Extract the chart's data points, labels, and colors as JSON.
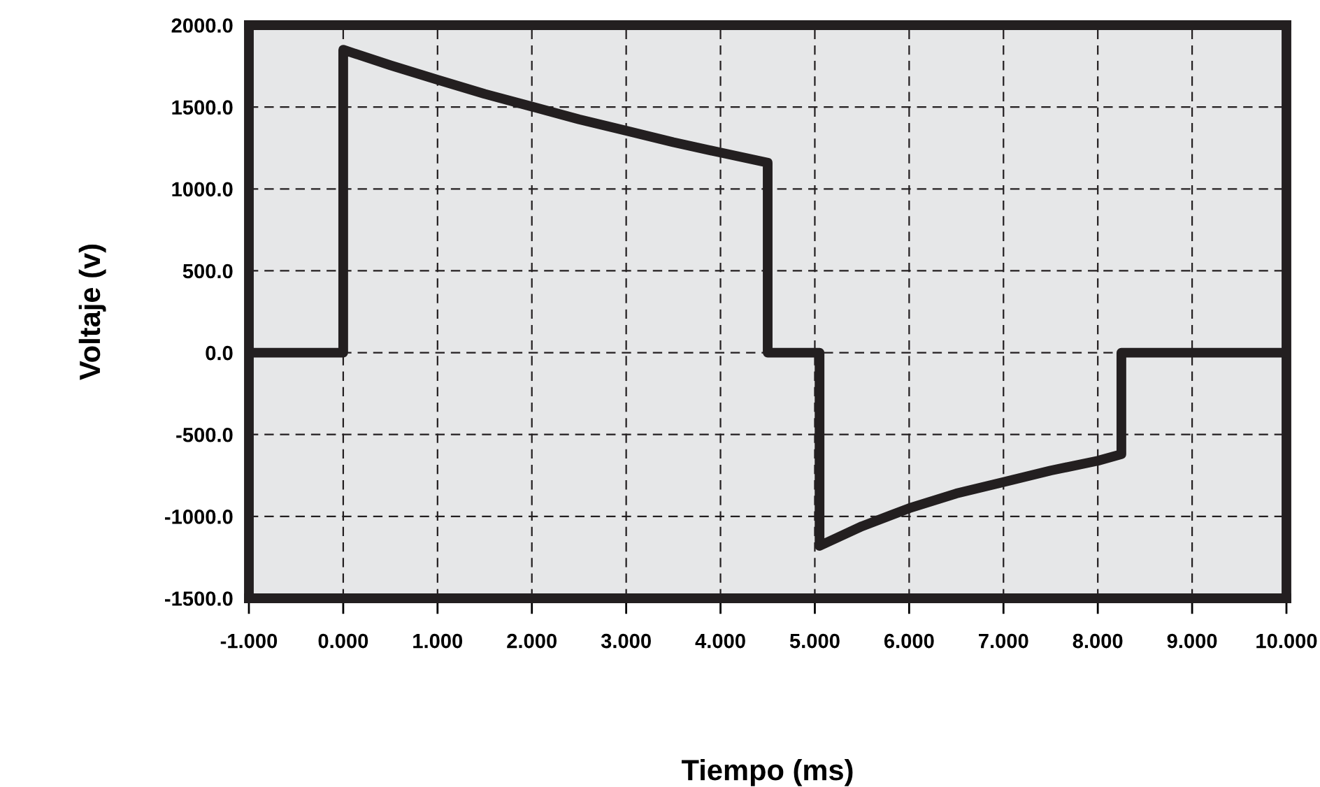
{
  "chart_data": {
    "type": "line",
    "xlabel": "Tiempo (ms)",
    "ylabel": "Voltaje (v)",
    "x": [
      -1,
      0,
      0,
      0.5,
      1,
      1.5,
      2,
      2.5,
      3,
      3.5,
      4,
      4.5,
      4.5,
      5.05,
      5.05,
      5.5,
      6,
      6.5,
      7,
      7.5,
      8,
      8.25,
      8.25,
      10
    ],
    "series": [
      {
        "color": "#231f20",
        "values": [
          0,
          0,
          1850,
          1755,
          1667,
          1580,
          1503,
          1425,
          1355,
          1285,
          1222,
          1160,
          0,
          0,
          -1180,
          -1060,
          -950,
          -860,
          -790,
          -720,
          -660,
          -620,
          0,
          0
        ]
      }
    ],
    "xlim": [
      -1,
      10
    ],
    "xticks": [
      {
        "value": -1,
        "label": "-1.000"
      },
      {
        "value": 0,
        "label": "0.000"
      },
      {
        "value": 1,
        "label": "1.000"
      },
      {
        "value": 2,
        "label": "2.000"
      },
      {
        "value": 3,
        "label": "3.000"
      },
      {
        "value": 4,
        "label": "4.000"
      },
      {
        "value": 5,
        "label": "5.000"
      },
      {
        "value": 6,
        "label": "6.000"
      },
      {
        "value": 7,
        "label": "7.000"
      },
      {
        "value": 8,
        "label": "8.000"
      },
      {
        "value": 9,
        "label": "9.000"
      },
      {
        "value": 10,
        "label": "10.000"
      }
    ],
    "ylim": [
      -1500,
      2000
    ],
    "yticks": [
      {
        "value": -1500,
        "label": "-1500.0"
      },
      {
        "value": -1000,
        "label": "-1000.0"
      },
      {
        "value": -500,
        "label": "-500.0"
      },
      {
        "value": 0,
        "label": "0.0"
      },
      {
        "value": 500,
        "label": "500.0"
      },
      {
        "value": 1000,
        "label": "1000.0"
      },
      {
        "value": 1500,
        "label": "1500.0"
      },
      {
        "value": 2000,
        "label": "2000.0"
      }
    ],
    "grid": true,
    "line_style": "solid",
    "marker": "none"
  }
}
